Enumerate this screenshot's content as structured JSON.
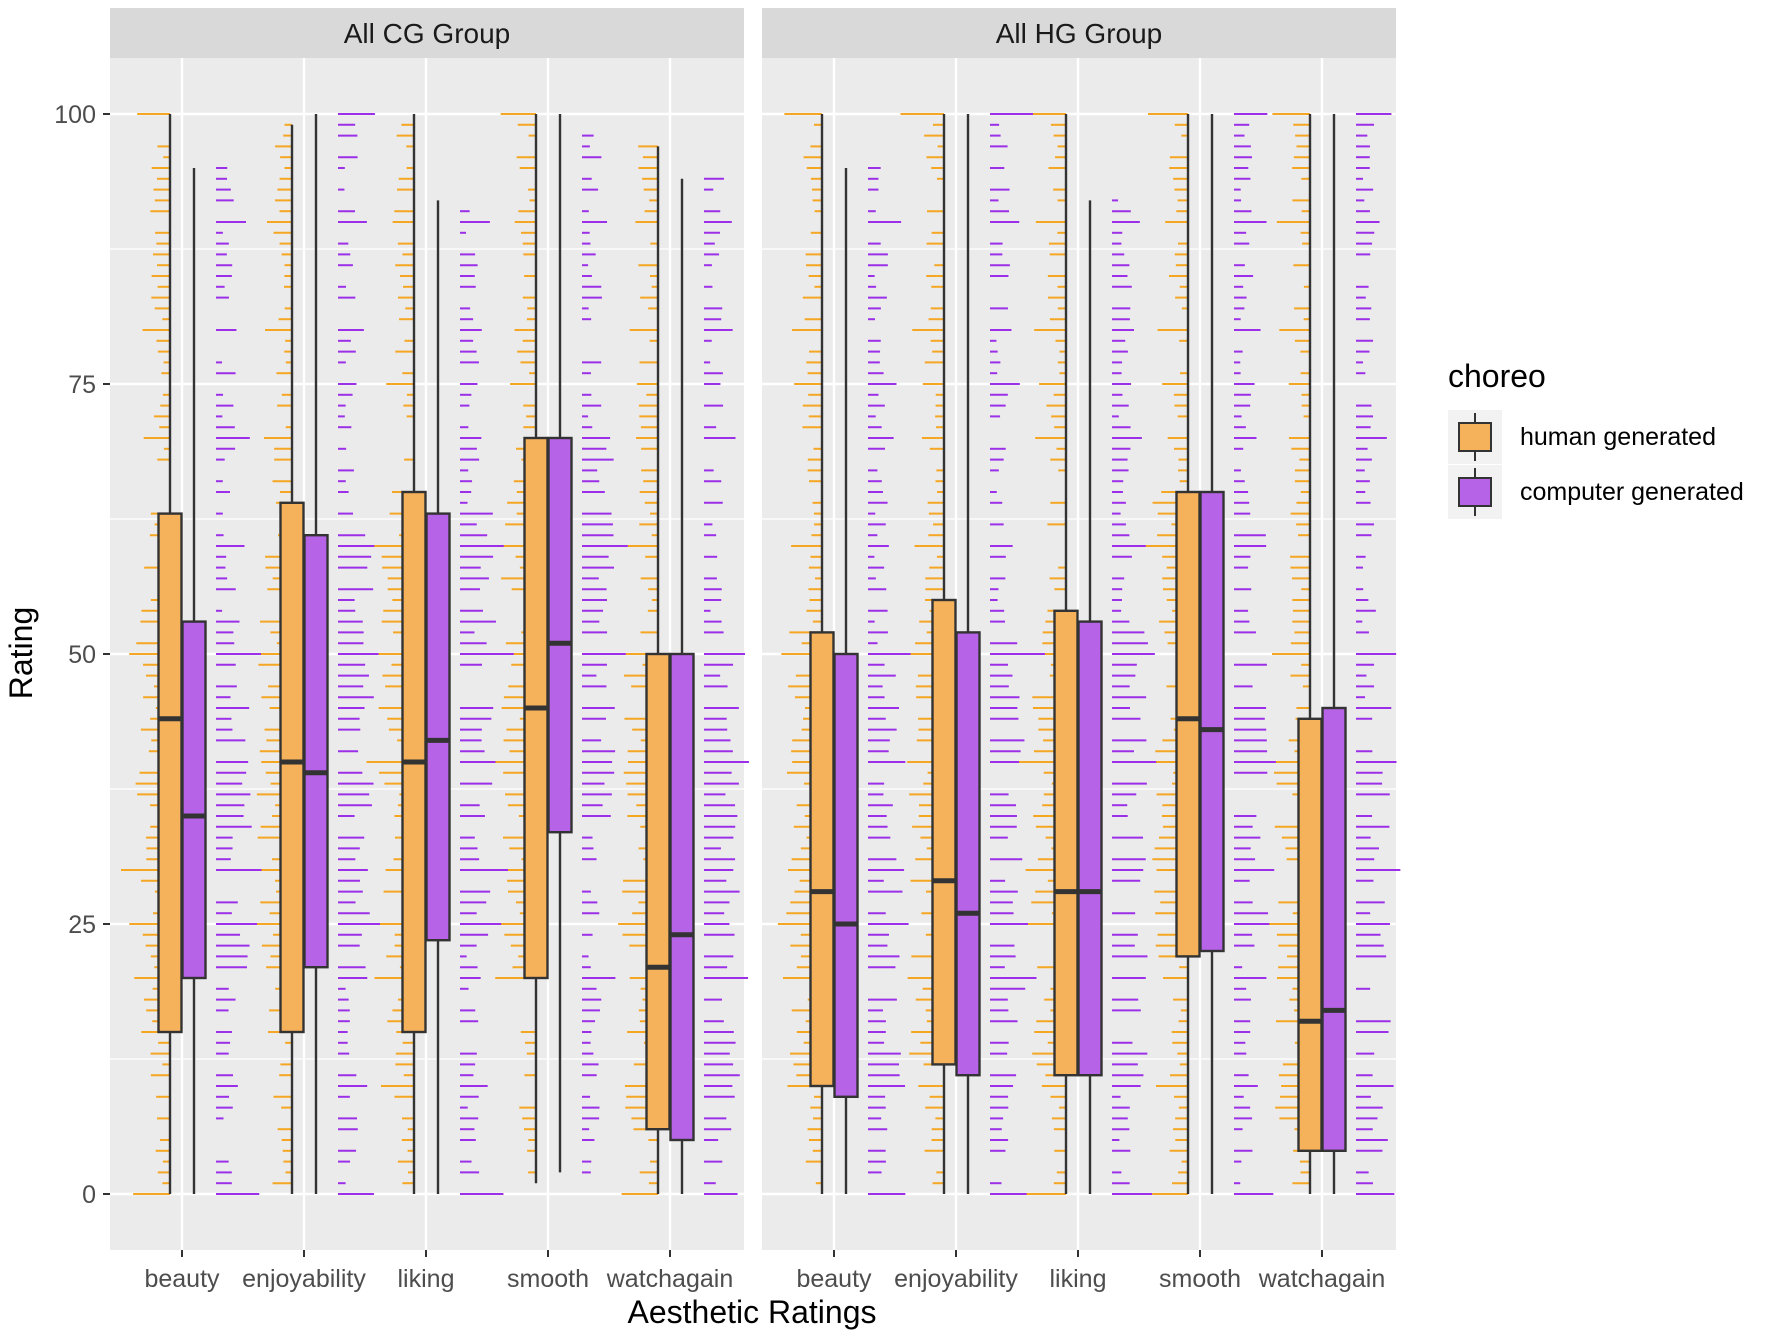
{
  "chart_data": {
    "type": "boxplot",
    "xlabel": "Aesthetic Ratings",
    "ylabel": "Rating",
    "ylim": [
      -5,
      105
    ],
    "yticks": [
      0,
      25,
      50,
      75,
      100
    ],
    "categories": [
      "beauty",
      "enjoyability",
      "liking",
      "smooth",
      "watchagain"
    ],
    "legend": {
      "title": "choreo",
      "entries": [
        {
          "name": "human generated",
          "color": "#f5b25a"
        },
        {
          "name": "computer generated",
          "color": "#b763e8"
        }
      ]
    },
    "colors": {
      "human": "#f5b25a",
      "computer": "#b763e8",
      "human_rug": "#f5a623",
      "computer_rug": "#9b30e8",
      "panel_bg": "#ebebeb",
      "strip_bg": "#d9d9d9",
      "grid": "#ffffff",
      "outline": "#333333"
    },
    "panels": [
      {
        "title": "All CG Group",
        "series": [
          {
            "name": "human generated",
            "boxes": [
              {
                "category": "beauty",
                "min": 0,
                "q1": 15,
                "median": 44,
                "q3": 63,
                "max": 100
              },
              {
                "category": "enjoyability",
                "min": 0,
                "q1": 15,
                "median": 40,
                "q3": 64,
                "max": 99
              },
              {
                "category": "liking",
                "min": 0,
                "q1": 15,
                "median": 40,
                "q3": 65,
                "max": 100
              },
              {
                "category": "smooth",
                "min": 1,
                "q1": 20,
                "median": 45,
                "q3": 70,
                "max": 100
              },
              {
                "category": "watchagain",
                "min": 0,
                "q1": 6,
                "median": 21,
                "q3": 50,
                "max": 97
              }
            ]
          },
          {
            "name": "computer generated",
            "boxes": [
              {
                "category": "beauty",
                "min": 0,
                "q1": 20,
                "median": 35,
                "q3": 53,
                "max": 95
              },
              {
                "category": "enjoyability",
                "min": 0,
                "q1": 21,
                "median": 39,
                "q3": 61,
                "max": 100
              },
              {
                "category": "liking",
                "min": 0,
                "q1": 23.5,
                "median": 42,
                "q3": 63,
                "max": 92
              },
              {
                "category": "smooth",
                "min": 2,
                "q1": 33.5,
                "median": 51,
                "q3": 70,
                "max": 100
              },
              {
                "category": "watchagain",
                "min": 0,
                "q1": 5,
                "median": 24,
                "q3": 50,
                "max": 94
              }
            ]
          }
        ]
      },
      {
        "title": "All HG Group",
        "series": [
          {
            "name": "human generated",
            "boxes": [
              {
                "category": "beauty",
                "min": 0,
                "q1": 10,
                "median": 28,
                "q3": 52,
                "max": 100
              },
              {
                "category": "enjoyability",
                "min": 0,
                "q1": 12,
                "median": 29,
                "q3": 55,
                "max": 100
              },
              {
                "category": "liking",
                "min": 0,
                "q1": 11,
                "median": 28,
                "q3": 54,
                "max": 100
              },
              {
                "category": "smooth",
                "min": 0,
                "q1": 22,
                "median": 44,
                "q3": 65,
                "max": 100
              },
              {
                "category": "watchagain",
                "min": 0,
                "q1": 4,
                "median": 16,
                "q3": 44,
                "max": 100
              }
            ]
          },
          {
            "name": "computer generated",
            "boxes": [
              {
                "category": "beauty",
                "min": 0,
                "q1": 9,
                "median": 25,
                "q3": 50,
                "max": 95
              },
              {
                "category": "enjoyability",
                "min": 0,
                "q1": 11,
                "median": 26,
                "q3": 52,
                "max": 100
              },
              {
                "category": "liking",
                "min": 0,
                "q1": 11,
                "median": 28,
                "q3": 53,
                "max": 92
              },
              {
                "category": "smooth",
                "min": 0,
                "q1": 22.5,
                "median": 43,
                "q3": 65,
                "max": 100
              },
              {
                "category": "watchagain",
                "min": 0,
                "q1": 4,
                "median": 17,
                "q3": 45,
                "max": 100
              }
            ]
          }
        ]
      }
    ]
  }
}
